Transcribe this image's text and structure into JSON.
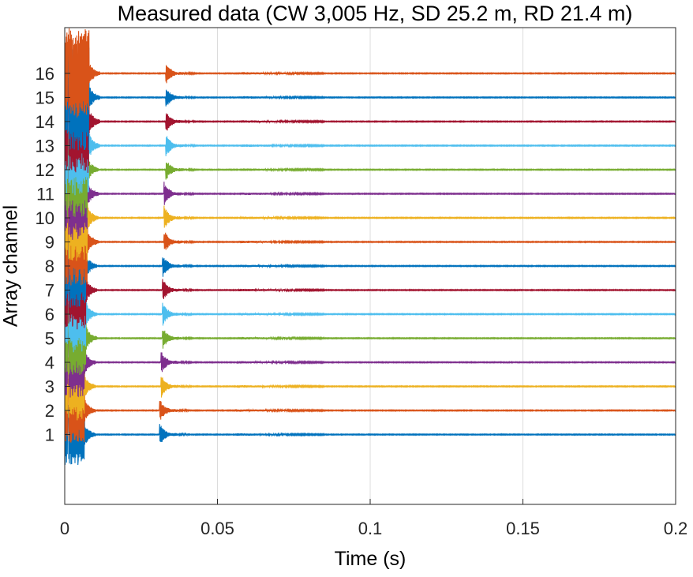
{
  "chart_data": {
    "type": "line",
    "title": "Measured data (CW 3,005 Hz, SD 25.2 m, RD 21.4 m)",
    "xlabel": "Time (s)",
    "ylabel": "Array channel",
    "xlim": [
      0,
      0.2
    ],
    "xticks": [
      0,
      0.05,
      0.1,
      0.15,
      0.2
    ],
    "xtick_labels": [
      "0",
      "0.05",
      "0.1",
      "0.15",
      "0.2"
    ],
    "ylim": [
      17.9,
      -1.9
    ],
    "yticks": [
      1,
      2,
      3,
      4,
      5,
      6,
      7,
      8,
      9,
      10,
      11,
      12,
      13,
      14,
      15,
      16
    ],
    "ytick_labels": [
      "1",
      "2",
      "3",
      "4",
      "5",
      "6",
      "7",
      "8",
      "9",
      "10",
      "11",
      "12",
      "13",
      "14",
      "15",
      "16"
    ],
    "grid": "vertical",
    "x_unit": "s",
    "series": [
      {
        "name": "Channel 1",
        "channel": 1,
        "color": "#0072BD",
        "direct_arrival_s": 0.004,
        "second_arrival_s": 0.031
      },
      {
        "name": "Channel 2",
        "channel": 2,
        "color": "#D95319",
        "direct_arrival_s": 0.004,
        "second_arrival_s": 0.031
      },
      {
        "name": "Channel 3",
        "channel": 3,
        "color": "#EDB120",
        "direct_arrival_s": 0.004,
        "second_arrival_s": 0.0315
      },
      {
        "name": "Channel 4",
        "channel": 4,
        "color": "#7E2F8E",
        "direct_arrival_s": 0.004,
        "second_arrival_s": 0.0315
      },
      {
        "name": "Channel 5",
        "channel": 5,
        "color": "#77AC30",
        "direct_arrival_s": 0.0045,
        "second_arrival_s": 0.032
      },
      {
        "name": "Channel 6",
        "channel": 6,
        "color": "#4DBEEE",
        "direct_arrival_s": 0.0045,
        "second_arrival_s": 0.032
      },
      {
        "name": "Channel 7",
        "channel": 7,
        "color": "#A2142F",
        "direct_arrival_s": 0.0045,
        "second_arrival_s": 0.032
      },
      {
        "name": "Channel 8",
        "channel": 8,
        "color": "#0072BD",
        "direct_arrival_s": 0.0045,
        "second_arrival_s": 0.032
      },
      {
        "name": "Channel 9",
        "channel": 9,
        "color": "#D95319",
        "direct_arrival_s": 0.005,
        "second_arrival_s": 0.0325
      },
      {
        "name": "Channel 10",
        "channel": 10,
        "color": "#EDB120",
        "direct_arrival_s": 0.005,
        "second_arrival_s": 0.0325
      },
      {
        "name": "Channel 11",
        "channel": 11,
        "color": "#7E2F8E",
        "direct_arrival_s": 0.005,
        "second_arrival_s": 0.0325
      },
      {
        "name": "Channel 12",
        "channel": 12,
        "color": "#77AC30",
        "direct_arrival_s": 0.005,
        "second_arrival_s": 0.033
      },
      {
        "name": "Channel 13",
        "channel": 13,
        "color": "#4DBEEE",
        "direct_arrival_s": 0.0055,
        "second_arrival_s": 0.033
      },
      {
        "name": "Channel 14",
        "channel": 14,
        "color": "#A2142F",
        "direct_arrival_s": 0.0055,
        "second_arrival_s": 0.033
      },
      {
        "name": "Channel 15",
        "channel": 15,
        "color": "#0072BD",
        "direct_arrival_s": 0.0055,
        "second_arrival_s": 0.033
      },
      {
        "name": "Channel 16",
        "channel": 16,
        "color": "#D95319",
        "direct_arrival_s": 0.0055,
        "second_arrival_s": 0.033
      }
    ]
  }
}
